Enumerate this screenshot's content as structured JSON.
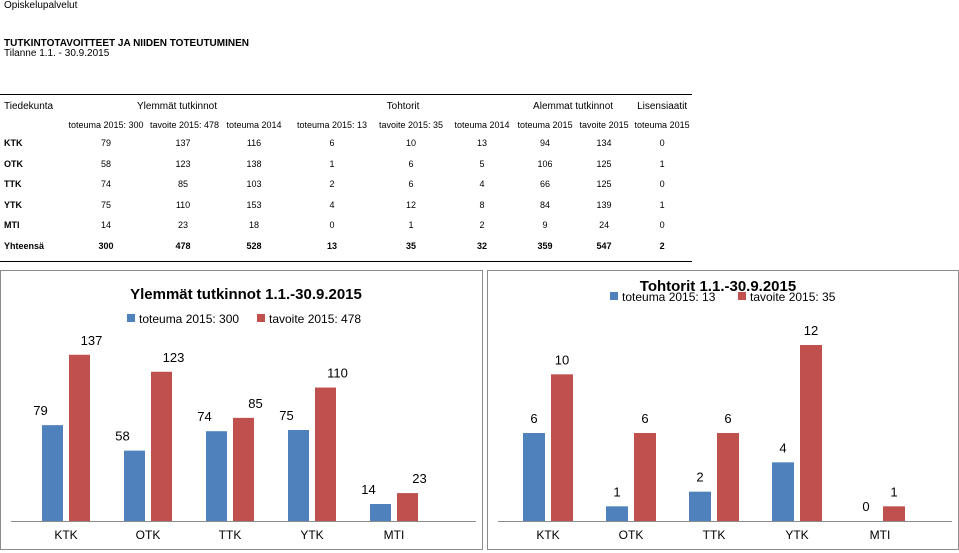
{
  "header": {
    "top_label": "Opiskelupalvelut",
    "title": "TUTKINTOTAVOITTEET JA NIIDEN TOTEUTUMINEN",
    "period": "Tilanne 1.1. - 30.9.2015"
  },
  "table": {
    "corner": "Tiedekunta",
    "groups": [
      "Ylemmät tutkinnot",
      "Tohtorit",
      "Alemmat tutkinnot",
      "Lisensiaatit"
    ],
    "subheaders": [
      "toteuma 2015: 300",
      "tavoite 2015: 478",
      "toteuma 2014",
      "toteuma 2015: 13",
      "tavoite 2015: 35",
      "toteuma 2014",
      "toteuma 2015",
      "tavoite 2015",
      "toteuma 2015"
    ],
    "rows": [
      {
        "label": "KTK",
        "values": [
          "79",
          "137",
          "116",
          "6",
          "10",
          "13",
          "94",
          "134",
          "0"
        ]
      },
      {
        "label": "OTK",
        "values": [
          "58",
          "123",
          "138",
          "1",
          "6",
          "5",
          "106",
          "125",
          "1"
        ]
      },
      {
        "label": "TTK",
        "values": [
          "74",
          "85",
          "103",
          "2",
          "6",
          "4",
          "66",
          "125",
          "0"
        ]
      },
      {
        "label": "YTK",
        "values": [
          "75",
          "110",
          "153",
          "4",
          "12",
          "8",
          "84",
          "139",
          "1"
        ]
      },
      {
        "label": "MTI",
        "values": [
          "14",
          "23",
          "18",
          "0",
          "1",
          "2",
          "9",
          "24",
          "0"
        ]
      },
      {
        "label": "Yhteensä",
        "values": [
          "300",
          "478",
          "528",
          "13",
          "35",
          "32",
          "359",
          "547",
          "2"
        ]
      }
    ]
  },
  "chart_data": [
    {
      "type": "bar",
      "title": "Ylemmät tutkinnot 1.1.-30.9.2015",
      "categories": [
        "KTK",
        "OTK",
        "TTK",
        "YTK",
        "MTI"
      ],
      "series": [
        {
          "name": "toteuma 2015: 300",
          "values": [
            79,
            58,
            74,
            75,
            14
          ],
          "color": "#4f81bd"
        },
        {
          "name": "tavoite 2015: 478",
          "values": [
            137,
            123,
            85,
            110,
            23
          ],
          "color": "#c0504d"
        }
      ],
      "ylim": [
        0,
        150
      ],
      "legend": "top"
    },
    {
      "type": "bar",
      "title": "Tohtorit 1.1.-30.9.2015",
      "categories": [
        "KTK",
        "OTK",
        "TTK",
        "YTK",
        "MTI"
      ],
      "series": [
        {
          "name": "toteuma 2015: 13",
          "values": [
            6,
            1,
            2,
            4,
            0
          ],
          "color": "#4f81bd"
        },
        {
          "name": "tavoite 2015: 35",
          "values": [
            10,
            6,
            6,
            12,
            1
          ],
          "color": "#c0504d"
        }
      ],
      "ylim": [
        0,
        13.5
      ],
      "legend": "top"
    }
  ]
}
